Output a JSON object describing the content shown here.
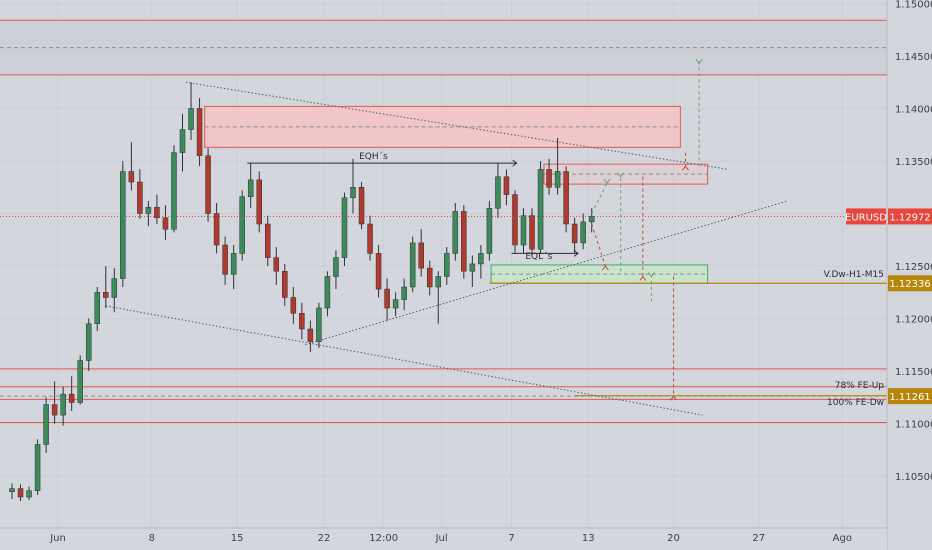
{
  "chart_data": {
    "type": "candlestick",
    "symbol": "EURUSD",
    "colors": {
      "background": "#d3d6dc",
      "panel": "#dadde2",
      "up": "#3d8a5a",
      "down": "#b03a2e",
      "resistance_line": "#e05a50",
      "support_zone": "#c9e3cd",
      "supply_zone": "#f0c6c9",
      "price_tag": "#e8453c",
      "vwap_tag": "#b8860b",
      "level_tag": "#b8860b"
    },
    "y_axis": {
      "range": [
        1.1025,
        1.15
      ],
      "ticks": [
        "1.15000",
        "1.14500",
        "1.14000",
        "1.13500",
        "1.13000",
        "1.12500",
        "1.12000",
        "1.11500",
        "1.11000",
        "1.10500"
      ]
    },
    "x_axis": {
      "range": [
        0,
        52
      ],
      "ticks": [
        {
          "label": "Jun",
          "x": 2.7
        },
        {
          "label": "8",
          "x": 8.2
        },
        {
          "label": "15",
          "x": 13.2
        },
        {
          "label": "22",
          "x": 18.3
        },
        {
          "label": "12:00",
          "x": 21.8
        },
        {
          "label": "Jul",
          "x": 25.2
        },
        {
          "label": "7",
          "x": 29.3
        },
        {
          "label": "13",
          "x": 33.8
        },
        {
          "label": "20",
          "x": 38.8
        },
        {
          "label": "27",
          "x": 43.8
        },
        {
          "label": "Ago",
          "x": 48.7
        }
      ]
    },
    "current_price": {
      "label": "EURUSD",
      "value": "1.12972",
      "y": 1.12972
    },
    "levels": [
      {
        "label": "V.Dw-H1-M15",
        "value": "1.12336",
        "y": 1.12336
      },
      {
        "label": "78% FE-Up",
        "y": 1.1131
      },
      {
        "label": "100% FE-Dw",
        "value": "1.11261",
        "y": 1.11261
      }
    ],
    "annotations": [
      {
        "text": "EQH´s",
        "x": 21.2,
        "y": 1.1352
      },
      {
        "text": "EQL´s",
        "x": 30.9,
        "y": 1.12565
      }
    ],
    "horizontal_lines": [
      1.1484,
      1.1432,
      1.1152,
      1.1135,
      1.1123,
      1.1101
    ],
    "zones": [
      {
        "kind": "supply",
        "x0": 11.3,
        "x1": 39.2,
        "y0": 1.1363,
        "y1": 1.1402
      },
      {
        "kind": "supply_small",
        "x0": 31.2,
        "x1": 40.8,
        "y0": 1.1328,
        "y1": 1.1347
      },
      {
        "kind": "demand",
        "x0": 28.1,
        "x1": 40.8,
        "y0": 1.12336,
        "y1": 1.1251
      }
    ],
    "candles": [
      [
        0,
        1.1035,
        1.1043,
        1.1028,
        1.1038
      ],
      [
        0.5,
        1.1038,
        1.1042,
        1.1026,
        1.103
      ],
      [
        1.0,
        1.103,
        1.104,
        1.1027,
        1.1036
      ],
      [
        1.5,
        1.1036,
        1.1085,
        1.1032,
        1.108
      ],
      [
        2.0,
        1.108,
        1.1125,
        1.1072,
        1.1118
      ],
      [
        2.5,
        1.1118,
        1.114,
        1.11,
        1.1108
      ],
      [
        3.0,
        1.1108,
        1.1135,
        1.1098,
        1.1128
      ],
      [
        3.5,
        1.1128,
        1.1145,
        1.1112,
        1.112
      ],
      [
        4.0,
        1.112,
        1.1165,
        1.1118,
        1.116
      ],
      [
        4.5,
        1.116,
        1.12,
        1.115,
        1.1195
      ],
      [
        5.0,
        1.1195,
        1.123,
        1.1188,
        1.1225
      ],
      [
        5.5,
        1.1225,
        1.125,
        1.121,
        1.122
      ],
      [
        6.0,
        1.122,
        1.1248,
        1.1206,
        1.1238
      ],
      [
        6.5,
        1.1238,
        1.135,
        1.123,
        1.134
      ],
      [
        7.0,
        1.134,
        1.1368,
        1.1322,
        1.133
      ],
      [
        7.5,
        1.133,
        1.1342,
        1.1295,
        1.13
      ],
      [
        8.0,
        1.13,
        1.1312,
        1.1288,
        1.1306
      ],
      [
        8.5,
        1.1306,
        1.1318,
        1.129,
        1.1296
      ],
      [
        9.0,
        1.1296,
        1.1308,
        1.1275,
        1.1285
      ],
      [
        9.5,
        1.1285,
        1.1365,
        1.1282,
        1.1358
      ],
      [
        10.0,
        1.1358,
        1.1395,
        1.134,
        1.138
      ],
      [
        10.5,
        1.138,
        1.1425,
        1.137,
        1.14
      ],
      [
        11.0,
        1.14,
        1.141,
        1.1345,
        1.1355
      ],
      [
        11.5,
        1.1355,
        1.1362,
        1.1292,
        1.13
      ],
      [
        12.0,
        1.13,
        1.131,
        1.1262,
        1.127
      ],
      [
        12.5,
        1.127,
        1.1278,
        1.1232,
        1.1242
      ],
      [
        13.0,
        1.1242,
        1.127,
        1.1228,
        1.1262
      ],
      [
        13.5,
        1.1262,
        1.1322,
        1.1255,
        1.1316
      ],
      [
        14.0,
        1.1316,
        1.1348,
        1.1305,
        1.1332
      ],
      [
        14.5,
        1.1332,
        1.134,
        1.1282,
        1.129
      ],
      [
        15.0,
        1.129,
        1.1298,
        1.125,
        1.1258
      ],
      [
        15.5,
        1.1258,
        1.1268,
        1.1232,
        1.1245
      ],
      [
        16.0,
        1.1245,
        1.1252,
        1.1212,
        1.122
      ],
      [
        16.5,
        1.122,
        1.123,
        1.1195,
        1.1205
      ],
      [
        17.0,
        1.1205,
        1.1215,
        1.118,
        1.119
      ],
      [
        17.5,
        1.119,
        1.1198,
        1.1168,
        1.1178
      ],
      [
        18.0,
        1.1178,
        1.1215,
        1.1172,
        1.121
      ],
      [
        18.5,
        1.121,
        1.1245,
        1.1202,
        1.124
      ],
      [
        19.0,
        1.124,
        1.1265,
        1.1228,
        1.1258
      ],
      [
        19.5,
        1.1258,
        1.132,
        1.125,
        1.1315
      ],
      [
        20.0,
        1.1315,
        1.1352,
        1.13,
        1.1325
      ],
      [
        20.5,
        1.1325,
        1.133,
        1.1285,
        1.129
      ],
      [
        21.0,
        1.129,
        1.1298,
        1.1255,
        1.1262
      ],
      [
        21.5,
        1.1262,
        1.127,
        1.122,
        1.1228
      ],
      [
        22.0,
        1.1228,
        1.1238,
        1.1198,
        1.121
      ],
      [
        22.5,
        1.121,
        1.1225,
        1.1202,
        1.1218
      ],
      [
        23.0,
        1.1218,
        1.1238,
        1.1208,
        1.123
      ],
      [
        23.5,
        1.123,
        1.1278,
        1.1225,
        1.1272
      ],
      [
        24.0,
        1.1272,
        1.1285,
        1.124,
        1.1248
      ],
      [
        24.5,
        1.1248,
        1.1255,
        1.1222,
        1.123
      ],
      [
        25.0,
        1.123,
        1.1245,
        1.1195,
        1.124
      ],
      [
        25.5,
        1.124,
        1.1268,
        1.1232,
        1.1262
      ],
      [
        26.0,
        1.1262,
        1.131,
        1.1255,
        1.1302
      ],
      [
        26.5,
        1.1302,
        1.1308,
        1.1238,
        1.1245
      ],
      [
        27.0,
        1.1245,
        1.126,
        1.123,
        1.1252
      ],
      [
        27.5,
        1.1252,
        1.127,
        1.1238,
        1.1262
      ],
      [
        28.0,
        1.1262,
        1.1312,
        1.1255,
        1.1305
      ],
      [
        28.5,
        1.1305,
        1.1348,
        1.1296,
        1.1335
      ],
      [
        29.0,
        1.1335,
        1.1342,
        1.1308,
        1.1318
      ],
      [
        29.5,
        1.1318,
        1.1322,
        1.1262,
        1.127
      ],
      [
        30.0,
        1.127,
        1.1305,
        1.1262,
        1.1298
      ],
      [
        30.5,
        1.1298,
        1.1305,
        1.126,
        1.1266
      ],
      [
        31.0,
        1.1266,
        1.135,
        1.1262,
        1.1342
      ],
      [
        31.5,
        1.1342,
        1.1352,
        1.1318,
        1.1325
      ],
      [
        32.0,
        1.1325,
        1.1372,
        1.1318,
        1.134
      ],
      [
        32.5,
        1.134,
        1.1345,
        1.1282,
        1.129
      ],
      [
        33.0,
        1.129,
        1.1296,
        1.1262,
        1.1272
      ],
      [
        33.5,
        1.1272,
        1.13,
        1.1266,
        1.1292
      ],
      [
        34.0,
        1.1292,
        1.1305,
        1.1282,
        1.12972
      ]
    ]
  }
}
